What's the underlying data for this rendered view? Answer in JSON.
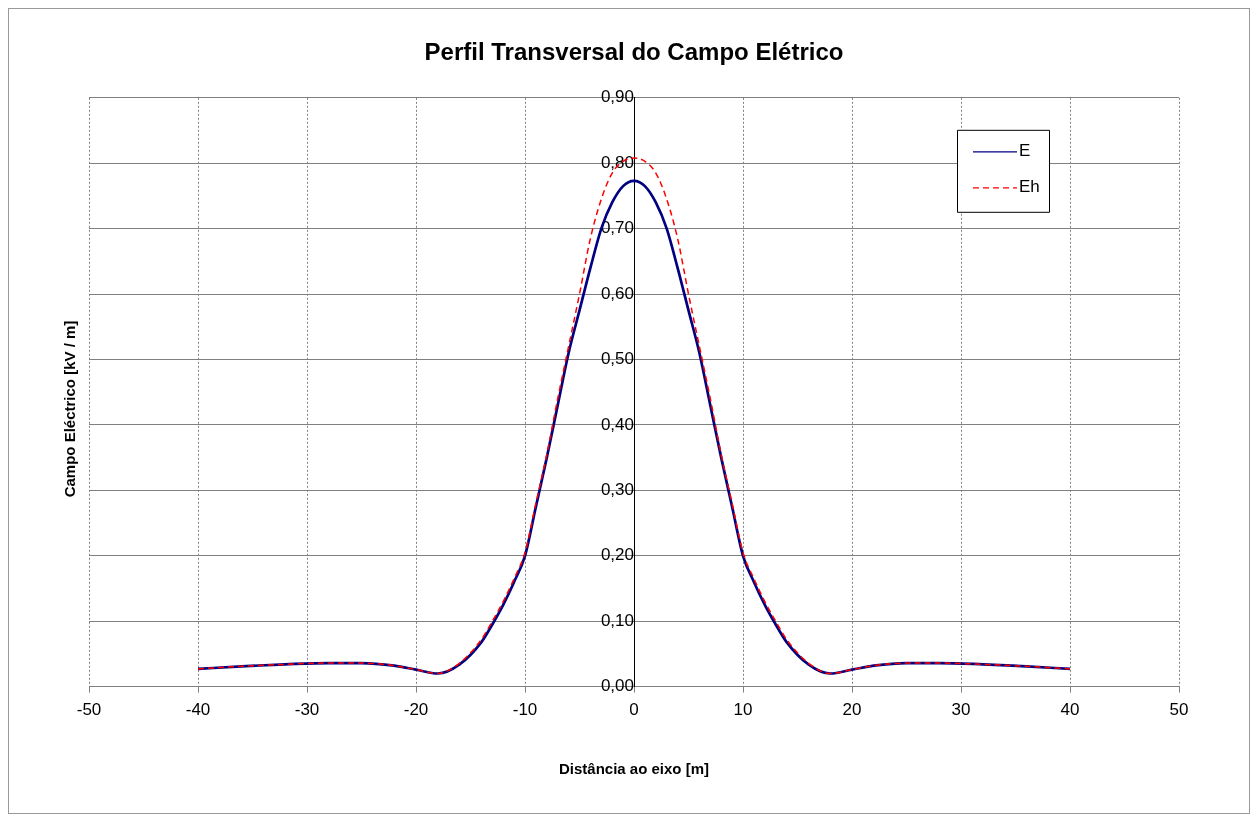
{
  "chart_data": {
    "type": "line",
    "title": "Perfil Transversal do Campo Elétrico",
    "xlabel": "Distância ao eixo [m]",
    "ylabel": "Campo Eléctrico [kV / m]",
    "x": [
      -40,
      -36,
      -32,
      -28,
      -25,
      -22,
      -20,
      -18,
      -16,
      -14,
      -13,
      -12,
      -11,
      -10,
      -9,
      -8,
      -7,
      -6,
      -5,
      -4,
      -3,
      -2,
      -1,
      0,
      1,
      2,
      3,
      4,
      5,
      6,
      7,
      8,
      9,
      10,
      11,
      12,
      13,
      14,
      16,
      18,
      20,
      22,
      25,
      28,
      32,
      36,
      40
    ],
    "series": [
      {
        "name": "E",
        "color": "#000080",
        "line_style": "solid",
        "values": [
          0.027,
          0.031,
          0.034,
          0.036,
          0.036,
          0.032,
          0.026,
          0.02,
          0.034,
          0.068,
          0.095,
          0.125,
          0.16,
          0.2,
          0.275,
          0.35,
          0.43,
          0.51,
          0.575,
          0.64,
          0.7,
          0.74,
          0.765,
          0.773,
          0.765,
          0.74,
          0.7,
          0.64,
          0.575,
          0.51,
          0.43,
          0.35,
          0.275,
          0.2,
          0.16,
          0.125,
          0.095,
          0.068,
          0.034,
          0.02,
          0.026,
          0.032,
          0.036,
          0.036,
          0.034,
          0.031,
          0.027
        ]
      },
      {
        "name": "Eh",
        "color": "#ff0000",
        "line_style": "dashed",
        "values": [
          0.027,
          0.031,
          0.034,
          0.036,
          0.036,
          0.032,
          0.026,
          0.02,
          0.036,
          0.072,
          0.1,
          0.13,
          0.165,
          0.205,
          0.28,
          0.355,
          0.44,
          0.52,
          0.6,
          0.685,
          0.745,
          0.785,
          0.803,
          0.808,
          0.803,
          0.785,
          0.745,
          0.685,
          0.6,
          0.52,
          0.44,
          0.355,
          0.28,
          0.205,
          0.165,
          0.13,
          0.1,
          0.072,
          0.036,
          0.02,
          0.026,
          0.032,
          0.036,
          0.036,
          0.034,
          0.031,
          0.027
        ]
      }
    ],
    "xlim": [
      -50,
      50
    ],
    "xticks": [
      -50,
      -40,
      -30,
      -20,
      -10,
      0,
      10,
      20,
      30,
      40,
      50
    ],
    "ylim": [
      0,
      0.9
    ],
    "yticks": [
      {
        "value": 0,
        "label": "0,00"
      },
      {
        "value": 0.1,
        "label": "0,10"
      },
      {
        "value": 0.2,
        "label": "0,20"
      },
      {
        "value": 0.3,
        "label": "0,30"
      },
      {
        "value": 0.4,
        "label": "0,40"
      },
      {
        "value": 0.5,
        "label": "0,50"
      },
      {
        "value": 0.6,
        "label": "0,60"
      },
      {
        "value": 0.7,
        "label": "0,70"
      },
      {
        "value": 0.8,
        "label": "0,80"
      },
      {
        "value": 0.9,
        "label": "0,90"
      }
    ],
    "grid": true,
    "legend": "top right",
    "marker": "none"
  }
}
